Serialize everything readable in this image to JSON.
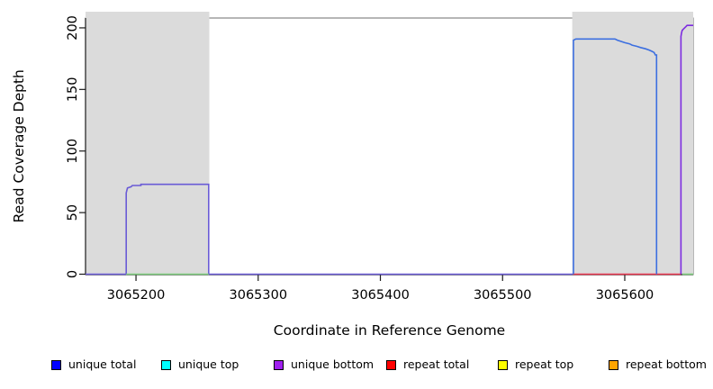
{
  "figure": {
    "xlabel": "Coordinate in Reference Genome",
    "ylabel": "Read Coverage Depth"
  },
  "legend": {
    "items": [
      {
        "label": "unique total",
        "color": "#0000FF"
      },
      {
        "label": "unique top",
        "color": "#00FFFF"
      },
      {
        "label": "unique bottom",
        "color": "#A020F0"
      },
      {
        "label": "repeat total",
        "color": "#FF0000"
      },
      {
        "label": "repeat top",
        "color": "#FFFF00"
      },
      {
        "label": "repeat bottom",
        "color": "#FFA500"
      }
    ]
  },
  "chart_data": {
    "type": "line",
    "title": "",
    "xlabel": "Coordinate in Reference Genome",
    "ylabel": "Read Coverage Depth",
    "xlim": [
      3065158.7,
      3065656.0
    ],
    "ylim": [
      0,
      208
    ],
    "x_ticks": [
      3065200,
      3065300,
      3065400,
      3065500,
      3065600
    ],
    "y_ticks": [
      0,
      50,
      100,
      150,
      200
    ],
    "grid": false,
    "legend_position": "bottom",
    "background_shading": [
      {
        "x_start": 3065158.7,
        "x_end": 3065260,
        "color": "#DBDBDB"
      },
      {
        "x_start": 3065557.0,
        "x_end": 3065656,
        "color": "#DBDBDB"
      }
    ],
    "series": [
      {
        "name": "unique-bottom left block plateau depth ~73",
        "color": "#6A5BD6",
        "points": [
          [
            3065158.7,
            0
          ],
          [
            3065192,
            0
          ],
          [
            3065192,
            66
          ],
          [
            3065193,
            70
          ],
          [
            3065196,
            71
          ],
          [
            3065197,
            72
          ],
          [
            3065204,
            72
          ],
          [
            3065204,
            73
          ],
          [
            3065259.5,
            73
          ],
          [
            3065259.5,
            0
          ],
          [
            3065557.5,
            0
          ]
        ]
      },
      {
        "name": "repeat-total baseline under right block",
        "color": "#E8354E",
        "points": [
          [
            3065557.5,
            0
          ],
          [
            3065646,
            0
          ]
        ]
      },
      {
        "name": "green baseline under left block (top-strand overlap)",
        "color": "#7CCB7C",
        "points": [
          [
            3065192,
            0
          ],
          [
            3065259.5,
            0
          ]
        ]
      },
      {
        "name": "unique-total right block plateau depth ~191 declining to ~180",
        "color": "#3C6FE0",
        "points": [
          [
            3065558,
            0
          ],
          [
            3065558,
            190
          ],
          [
            3065560,
            191
          ],
          [
            3065592,
            191
          ],
          [
            3065594,
            190
          ],
          [
            3065597,
            189
          ],
          [
            3065600,
            188
          ],
          [
            3065604,
            187
          ],
          [
            3065606,
            186
          ],
          [
            3065610,
            185
          ],
          [
            3065613,
            184
          ],
          [
            3065617,
            183
          ],
          [
            3065620,
            182
          ],
          [
            3065622,
            181
          ],
          [
            3065624,
            180
          ],
          [
            3065625,
            178
          ],
          [
            3065626,
            178
          ],
          [
            3065626,
            0
          ]
        ]
      },
      {
        "name": "unique-bottom right edge spike depth ~202",
        "color": "#7D2BE0",
        "points": [
          [
            3065646,
            0
          ],
          [
            3065646,
            193
          ],
          [
            3065646.5,
            196
          ],
          [
            3065647,
            198
          ],
          [
            3065648,
            199
          ],
          [
            3065650,
            201
          ],
          [
            3065651,
            202
          ],
          [
            3065656,
            202
          ]
        ]
      },
      {
        "name": "green baseline at right edge",
        "color": "#7CCB7C",
        "points": [
          [
            3065647,
            0
          ],
          [
            3065656,
            0
          ]
        ]
      }
    ]
  }
}
